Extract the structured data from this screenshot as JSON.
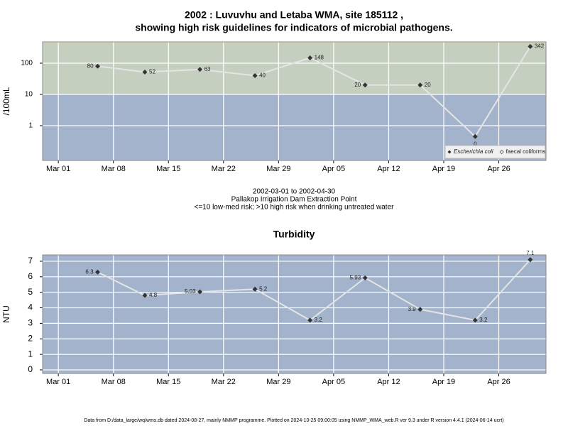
{
  "chart_data": [
    {
      "type": "line",
      "title": "2002 : Luvuvhu and Letaba WMA, site 185112 ,",
      "title_line2": "showing high risk guidelines for indicators of microbial pathogens.",
      "y_label": "/100mL",
      "subtitle": [
        "2002-03-01 to 2002-04-30",
        "Pallakop Irrigation Dam Extraction Point",
        "<=10 low-med risk; >10 high risk when drinking untreated water"
      ],
      "x": [
        "2002-03-06",
        "2002-03-12",
        "2002-03-19",
        "2002-03-26",
        "2002-04-02",
        "2002-04-09",
        "2002-04-16",
        "2002-04-23",
        "2002-04-30"
      ],
      "series": [
        {
          "name": "Escherichia coli",
          "color": "#333333",
          "values": [
            80,
            52,
            63,
            40,
            148,
            20,
            20,
            0.45,
            342
          ],
          "value_labels": [
            "80",
            "52",
            "63",
            "40",
            "148",
            "20",
            "20",
            "0",
            "342"
          ]
        },
        {
          "name": "faecal coliforms",
          "color": "#ffffff",
          "values": [
            null,
            null,
            null,
            null,
            null,
            null,
            null,
            null,
            null
          ]
        }
      ],
      "log_y": true,
      "ylim": [
        0.077,
        480
      ],
      "yticks": [
        1,
        10,
        100
      ],
      "xlim": [
        "2002-02-27",
        "2002-05-02"
      ],
      "xticks": [
        {
          "value": "2002-03-01",
          "label": "Mar 01"
        },
        {
          "value": "2002-03-08",
          "label": "Mar 08"
        },
        {
          "value": "2002-03-15",
          "label": "Mar 15"
        },
        {
          "value": "2002-03-22",
          "label": "Mar 22"
        },
        {
          "value": "2002-03-29",
          "label": "Mar 29"
        },
        {
          "value": "2002-04-05",
          "label": "Apr 05"
        },
        {
          "value": "2002-04-12",
          "label": "Apr 12"
        },
        {
          "value": "2002-04-19",
          "label": "Apr 19"
        },
        {
          "value": "2002-04-26",
          "label": "Apr 26"
        }
      ],
      "risk_threshold": 10,
      "band_colors": [
        "#a3b3cc",
        "#c5cfbf"
      ],
      "line_color": "#e4e4e4",
      "grid": true,
      "legend": "bottom-right"
    },
    {
      "type": "line",
      "title": "Turbidity",
      "y_label": "NTU",
      "x": [
        "2002-03-06",
        "2002-03-12",
        "2002-03-19",
        "2002-03-26",
        "2002-04-02",
        "2002-04-09",
        "2002-04-16",
        "2002-04-23",
        "2002-04-30"
      ],
      "series": [
        {
          "name": "Turbidity",
          "color": "#333333",
          "values": [
            6.3,
            4.8,
            5.03,
            5.2,
            3.2,
            5.93,
            3.9,
            3.2,
            7.1
          ]
        }
      ],
      "log_y": false,
      "ylim": [
        -0.23,
        7.41
      ],
      "yticks": [
        0,
        1,
        2,
        3,
        4,
        5,
        6,
        7
      ],
      "xlim": [
        "2002-02-27",
        "2002-05-02"
      ],
      "xticks": [
        {
          "value": "2002-03-01",
          "label": "Mar 01"
        },
        {
          "value": "2002-03-08",
          "label": "Mar 08"
        },
        {
          "value": "2002-03-15",
          "label": "Mar 15"
        },
        {
          "value": "2002-03-22",
          "label": "Mar 22"
        },
        {
          "value": "2002-03-29",
          "label": "Mar 29"
        },
        {
          "value": "2002-04-05",
          "label": "Apr 05"
        },
        {
          "value": "2002-04-12",
          "label": "Apr 12"
        },
        {
          "value": "2002-04-19",
          "label": "Apr 19"
        },
        {
          "value": "2002-04-26",
          "label": "Apr 26"
        }
      ],
      "background": "#a3b3cc",
      "line_color": "#e4e4e4",
      "grid": true
    }
  ],
  "footer": "Data from D:/data_large/wq/wms.db dated 2024-08-27, mainly NMMP programme. Plotted on 2024-10-25 09:00:05 using NMMP_WMA_web.R ver 9.3 under R version 4.4.1 (2024-06-14 ucrt)"
}
